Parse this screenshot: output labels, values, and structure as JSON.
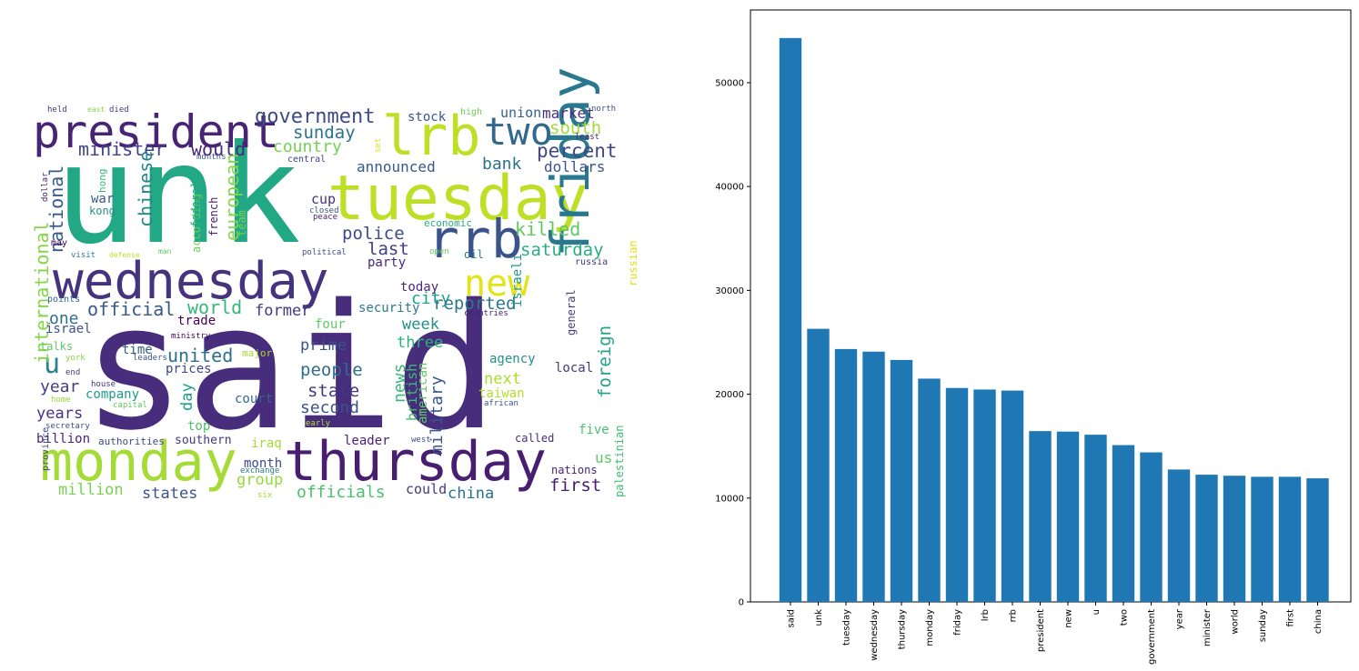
{
  "wordcloud": {
    "words": [
      {
        "t": "said",
        "c": "#472d7b"
      },
      {
        "t": "unk",
        "c": "#22a884"
      },
      {
        "t": "tuesday",
        "c": "#bddf26"
      },
      {
        "t": "wednesday",
        "c": "#46337e"
      },
      {
        "t": "thursday",
        "c": "#481f70"
      },
      {
        "t": "monday",
        "c": "#a5db36"
      },
      {
        "t": "friday",
        "c": "#2a788e"
      },
      {
        "t": "lrb",
        "c": "#bddf26"
      },
      {
        "t": "rrb",
        "c": "#3b528b"
      },
      {
        "t": "president",
        "c": "#482475"
      },
      {
        "t": "new",
        "c": "#e3e418"
      },
      {
        "t": "two",
        "c": "#31688e"
      },
      {
        "t": "u",
        "c": "#27808e"
      },
      {
        "t": "government",
        "c": "#3e4a89"
      },
      {
        "t": "minister",
        "c": "#414487"
      },
      {
        "t": "would",
        "c": "#472a7a"
      },
      {
        "t": "country",
        "c": "#75d054"
      },
      {
        "t": "sunday",
        "c": "#2c728e"
      },
      {
        "t": "percent",
        "c": "#3f4788"
      },
      {
        "t": "south",
        "c": "#a2da37"
      },
      {
        "t": "national",
        "c": "#365c8d"
      },
      {
        "t": "chinese",
        "c": "#25858e"
      },
      {
        "t": "european",
        "c": "#86d549"
      },
      {
        "t": "bank",
        "c": "#2c728e"
      },
      {
        "t": "dollars",
        "c": "#3b528b"
      },
      {
        "t": "announced",
        "c": "#38598c"
      },
      {
        "t": "killed",
        "c": "#5ec962"
      },
      {
        "t": "saturday",
        "c": "#29af7f"
      },
      {
        "t": "police",
        "c": "#3e4a89"
      },
      {
        "t": "last",
        "c": "#433e85"
      },
      {
        "t": "official",
        "c": "#38598c"
      },
      {
        "t": "world",
        "c": "#35b779"
      },
      {
        "t": "former",
        "c": "#443983"
      },
      {
        "t": "city",
        "c": "#1fa188"
      },
      {
        "t": "reported",
        "c": "#2a788e"
      },
      {
        "t": "one",
        "c": "#2e6e8e"
      },
      {
        "t": "united",
        "c": "#2d708e"
      },
      {
        "t": "international",
        "c": "#86d549"
      },
      {
        "t": "week",
        "c": "#21918c"
      },
      {
        "t": "three",
        "c": "#2db27d"
      },
      {
        "t": "prime",
        "c": "#3b528b"
      },
      {
        "t": "people",
        "c": "#2f6c8e"
      },
      {
        "t": "state",
        "c": "#443983"
      },
      {
        "t": "second",
        "c": "#3b528b"
      },
      {
        "t": "year",
        "c": "#433e85"
      },
      {
        "t": "years",
        "c": "#46337e"
      },
      {
        "t": "billion",
        "c": "#482475"
      },
      {
        "t": "million",
        "c": "#7ad151"
      },
      {
        "t": "states",
        "c": "#3b528b"
      },
      {
        "t": "officials",
        "c": "#4ac16d"
      },
      {
        "t": "china",
        "c": "#2c728e"
      },
      {
        "t": "first",
        "c": "#481b6d"
      },
      {
        "t": "us",
        "c": "#5ec962"
      },
      {
        "t": "foreign",
        "c": "#20a386"
      },
      {
        "t": "palestinian",
        "c": "#3dbc74"
      },
      {
        "t": "military",
        "c": "#39568c"
      },
      {
        "t": "news",
        "c": "#38b977"
      },
      {
        "t": "british",
        "c": "#3dbc74"
      },
      {
        "t": "american",
        "c": "#5ec962"
      },
      {
        "t": "group",
        "c": "#95d840"
      },
      {
        "t": "month",
        "c": "#3f4788"
      },
      {
        "t": "court",
        "c": "#31688e"
      },
      {
        "t": "day",
        "c": "#1fa188"
      },
      {
        "t": "company",
        "c": "#1f9a8a"
      },
      {
        "t": "next",
        "c": "#addc30"
      },
      {
        "t": "taiwan",
        "c": "#b5de2b"
      },
      {
        "t": "agency",
        "c": "#21918c"
      },
      {
        "t": "security",
        "c": "#287c8e"
      },
      {
        "t": "leader",
        "c": "#481f70"
      },
      {
        "t": "called",
        "c": "#472d7b"
      },
      {
        "t": "nations",
        "c": "#482475"
      },
      {
        "t": "five",
        "c": "#4ac16d"
      },
      {
        "t": "could",
        "c": "#443983"
      },
      {
        "t": "top",
        "c": "#4ac16d"
      },
      {
        "t": "iraq",
        "c": "#a5db36"
      },
      {
        "t": "southern",
        "c": "#453882"
      },
      {
        "t": "authorities",
        "c": "#404688"
      },
      {
        "t": "stock",
        "c": "#3b528b"
      },
      {
        "t": "union",
        "c": "#34618d"
      },
      {
        "t": "market",
        "c": "#46307e"
      },
      {
        "t": "economic",
        "c": "#27ad81"
      },
      {
        "t": "israeli",
        "c": "#1f998a"
      },
      {
        "t": "today",
        "c": "#472c7a"
      },
      {
        "t": "party",
        "c": "#482979"
      },
      {
        "t": "general",
        "c": "#433e85"
      },
      {
        "t": "local",
        "c": "#443a83"
      },
      {
        "t": "four",
        "c": "#5ec962"
      },
      {
        "t": "trade",
        "c": "#440154"
      },
      {
        "t": "time",
        "c": "#365c8d"
      },
      {
        "t": "israel",
        "c": "#3b528b"
      },
      {
        "t": "talks",
        "c": "#5ec962"
      },
      {
        "t": "prices",
        "c": "#3f4788"
      },
      {
        "t": "major",
        "c": "#a5db36"
      },
      {
        "t": "cup",
        "c": "#46307e"
      },
      {
        "t": "war",
        "c": "#38598c"
      },
      {
        "t": "kong",
        "c": "#21918c"
      },
      {
        "t": "hong",
        "c": "#3dbc74"
      },
      {
        "t": "according",
        "c": "#6ccd5a"
      },
      {
        "t": "federal",
        "c": "#22a884"
      },
      {
        "t": "french",
        "c": "#482071"
      },
      {
        "t": "team",
        "c": "#7ad151"
      },
      {
        "t": "russian",
        "c": "#dde318"
      },
      {
        "t": "russia",
        "c": "#46337e"
      },
      {
        "t": "countries",
        "c": "#482475"
      },
      {
        "t": "ministry",
        "c": "#440154"
      },
      {
        "t": "leaders",
        "c": "#3b528b"
      },
      {
        "t": "york",
        "c": "#86d549"
      },
      {
        "t": "end",
        "c": "#433e85"
      },
      {
        "t": "house",
        "c": "#46337e"
      },
      {
        "t": "home",
        "c": "#95d840"
      },
      {
        "t": "capital",
        "c": "#5ec962"
      },
      {
        "t": "secretary",
        "c": "#3b528b"
      },
      {
        "t": "province",
        "c": "#3e4a89"
      },
      {
        "t": "dollar",
        "c": "#482071"
      },
      {
        "t": "held",
        "c": "#46337e"
      },
      {
        "t": "east",
        "c": "#86d549"
      },
      {
        "t": "died",
        "c": "#433e85"
      },
      {
        "t": "months",
        "c": "#38598c"
      },
      {
        "t": "central",
        "c": "#414487"
      },
      {
        "t": "peace",
        "c": "#482475"
      },
      {
        "t": "closed",
        "c": "#3b528b"
      },
      {
        "t": "set",
        "c": "#dde318"
      },
      {
        "t": "may",
        "c": "#440154"
      },
      {
        "t": "visit",
        "c": "#27808e"
      },
      {
        "t": "defense",
        "c": "#bddf26"
      },
      {
        "t": "political",
        "c": "#3e4a89"
      },
      {
        "t": "open",
        "c": "#5ec962"
      },
      {
        "t": "oil",
        "c": "#2a788e"
      },
      {
        "t": "points",
        "c": "#31688e"
      },
      {
        "t": "high",
        "c": "#6ccd5a"
      },
      {
        "t": "north",
        "c": "#3b528b"
      },
      {
        "t": "least",
        "c": "#482475"
      },
      {
        "t": "early",
        "c": "#b5de2b"
      },
      {
        "t": "west",
        "c": "#3b528b"
      },
      {
        "t": "six",
        "c": "#a5db36"
      },
      {
        "t": "exchange",
        "c": "#287c8e"
      },
      {
        "t": "african",
        "c": "#3b528b"
      },
      {
        "t": "man",
        "c": "#5ec962"
      }
    ]
  },
  "chart_data": {
    "type": "bar",
    "categories": [
      "said",
      "unk",
      "tuesday",
      "wednesday",
      "thursday",
      "monday",
      "friday",
      "lrb",
      "rrb",
      "president",
      "new",
      "u",
      "two",
      "government",
      "year",
      "minister",
      "world",
      "sunday",
      "first",
      "china"
    ],
    "values": [
      54300,
      26300,
      24350,
      24100,
      23300,
      21500,
      20600,
      20450,
      20350,
      16450,
      16400,
      16100,
      15100,
      14400,
      12750,
      12250,
      12150,
      12050,
      12050,
      11900
    ],
    "title": "",
    "xlabel": "",
    "ylabel": "",
    "ylim": [
      0,
      57000
    ],
    "yticks": [
      0,
      10000,
      20000,
      30000,
      40000,
      50000
    ],
    "bar_color": "#1f77b4",
    "grid": false
  }
}
